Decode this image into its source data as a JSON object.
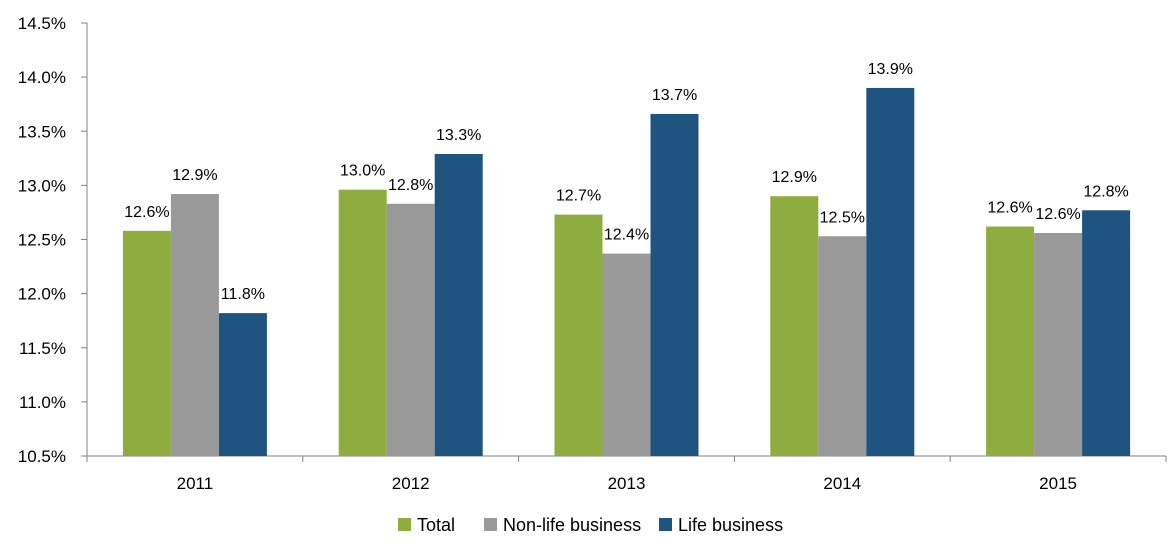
{
  "chart_data": {
    "type": "bar",
    "categories": [
      "2011",
      "2012",
      "2013",
      "2014",
      "2015"
    ],
    "series": [
      {
        "name": "Total",
        "color": "#8FAC3F",
        "values": [
          12.58,
          12.96,
          12.73,
          12.9,
          12.62
        ],
        "labels": [
          "12.6%",
          "13.0%",
          "12.7%",
          "12.9%",
          "12.6%"
        ]
      },
      {
        "name": "Non-life business",
        "color": "#999999",
        "values": [
          12.92,
          12.83,
          12.37,
          12.53,
          12.56
        ],
        "labels": [
          "12.9%",
          "12.8%",
          "12.4%",
          "12.5%",
          "12.6%"
        ]
      },
      {
        "name": "Life business",
        "color": "#1F5380",
        "values": [
          11.82,
          13.29,
          13.66,
          13.9,
          12.77
        ],
        "labels": [
          "11.8%",
          "13.3%",
          "13.7%",
          "13.9%",
          "12.8%"
        ]
      }
    ],
    "y_ticks": [
      "10.5%",
      "11.0%",
      "11.5%",
      "12.0%",
      "12.5%",
      "13.0%",
      "13.5%",
      "14.0%",
      "14.5%"
    ],
    "ylim": [
      10.5,
      14.5
    ],
    "ystep": 0.5,
    "legend_position": "bottom",
    "grid": false,
    "title": "",
    "xlabel": "",
    "ylabel": ""
  }
}
